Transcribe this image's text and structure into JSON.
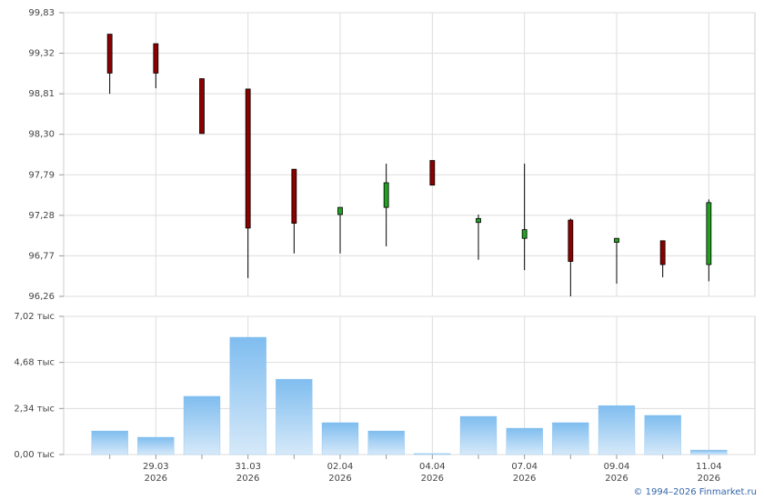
{
  "chart_data": {
    "type": "candlestick",
    "categories": [
      null,
      "29.03\n2026",
      null,
      "31.03\n2026",
      null,
      "02.04\n2026",
      null,
      "04.04\n2026",
      null,
      "07.04\n2026",
      null,
      "09.04\n2026",
      null,
      "11.04\n2026"
    ],
    "open": [
      99.56,
      99.44,
      99.0,
      98.87,
      97.86,
      97.29,
      97.38,
      97.97,
      97.19,
      96.99,
      97.22,
      96.94,
      96.96,
      96.66
    ],
    "high": [
      99.56,
      99.44,
      99.0,
      98.87,
      97.86,
      97.38,
      97.93,
      97.97,
      97.29,
      97.93,
      97.24,
      96.99,
      96.96,
      97.48
    ],
    "low": [
      98.81,
      98.88,
      98.31,
      96.49,
      96.8,
      96.8,
      96.89,
      97.66,
      96.72,
      96.59,
      96.26,
      96.42,
      96.5,
      96.45
    ],
    "close": [
      99.07,
      99.07,
      98.31,
      97.12,
      97.18,
      97.38,
      97.69,
      97.66,
      97.24,
      97.1,
      96.7,
      96.99,
      96.66,
      97.44
    ],
    "up_color": "#22a022",
    "down_color": "#8b0000",
    "ylim": [
      96.26,
      99.83
    ],
    "yticks": [
      {
        "value": 96.26,
        "label": "96,26"
      },
      {
        "value": 96.77,
        "label": "96,77"
      },
      {
        "value": 97.28,
        "label": "97,28"
      },
      {
        "value": 97.79,
        "label": "97,79"
      },
      {
        "value": 98.3,
        "label": "98,30"
      },
      {
        "value": 98.81,
        "label": "98,81"
      },
      {
        "value": 99.32,
        "label": "99,32"
      },
      {
        "value": 99.83,
        "label": "99,83"
      }
    ],
    "grid": true,
    "volume": {
      "type": "bar",
      "values": [
        1.2,
        0.88,
        2.96,
        5.96,
        3.83,
        1.62,
        1.2,
        0.05,
        1.94,
        1.34,
        1.62,
        2.49,
        1.99,
        0.23
      ],
      "color": "#7fbdef",
      "ylim": [
        0,
        7.02
      ],
      "yticks": [
        {
          "value": 0,
          "label": "0,00 тыс"
        },
        {
          "value": 2.34,
          "label": "2,34 тыс"
        },
        {
          "value": 4.68,
          "label": "4,68 тыс"
        },
        {
          "value": 7.02,
          "label": "7,02 тыс"
        }
      ]
    },
    "footer": "© 1994–2026 Finmarket.ru"
  }
}
